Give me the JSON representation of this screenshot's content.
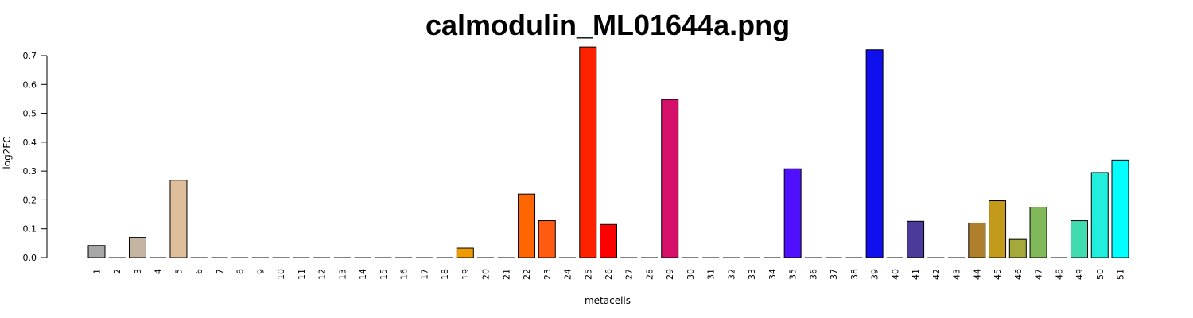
{
  "chart_data": {
    "type": "bar",
    "title": "calmodulin_ML01644a.png",
    "xlabel": "metacells",
    "ylabel": "log2FC",
    "ylim": [
      0,
      0.7
    ],
    "yticks": [
      "0.0",
      "0.1",
      "0.2",
      "0.3",
      "0.4",
      "0.5",
      "0.6",
      "0.7"
    ],
    "grid": false,
    "categories": [
      "1",
      "2",
      "3",
      "4",
      "5",
      "6",
      "7",
      "8",
      "9",
      "10",
      "11",
      "12",
      "13",
      "14",
      "15",
      "16",
      "17",
      "18",
      "19",
      "20",
      "21",
      "22",
      "23",
      "24",
      "25",
      "26",
      "27",
      "28",
      "29",
      "30",
      "31",
      "32",
      "33",
      "34",
      "35",
      "36",
      "37",
      "38",
      "39",
      "40",
      "41",
      "42",
      "43",
      "44",
      "45",
      "46",
      "47",
      "48",
      "49",
      "50",
      "51"
    ],
    "values": [
      0.042,
      0,
      0.07,
      0,
      0.268,
      0,
      0,
      0,
      0,
      0,
      0,
      0,
      0,
      0,
      0,
      0,
      0,
      0,
      0.033,
      0,
      0,
      0.22,
      0.128,
      0,
      0.73,
      0.115,
      0,
      0,
      0.548,
      0,
      0,
      0,
      0,
      0,
      0.308,
      0,
      0,
      0,
      0.72,
      0,
      0.126,
      0,
      0,
      0.12,
      0.197,
      0.063,
      0.175,
      0,
      0.128,
      0.295,
      0.338
    ],
    "colors": [
      "#a8a8a8",
      "#a8a8a8",
      "#c4b5a3",
      "#c4b5a3",
      "#dfbf9a",
      "#dfbf9a",
      "#dfbf9a",
      "#dfbf9a",
      "#dfbf9a",
      "#dfbf9a",
      "#dfbf9a",
      "#dfbf9a",
      "#dfbf9a",
      "#dfbf9a",
      "#dfbf9a",
      "#dfbf9a",
      "#dfbf9a",
      "#dfbf9a",
      "#f09a00",
      "#f09a00",
      "#f09a00",
      "#ff6600",
      "#ff5a10",
      "#ff3000",
      "#ff2200",
      "#ff0000",
      "#d4106a",
      "#d4106a",
      "#d4106a",
      "#5010ff",
      "#5010ff",
      "#5010ff",
      "#5010ff",
      "#5010ff",
      "#5010ff",
      "#1010ee",
      "#1010ee",
      "#1010ee",
      "#1010ee",
      "#4b3a9a",
      "#4b3a9a",
      "#b07f2c",
      "#b07f2c",
      "#b07f2c",
      "#c49a1b",
      "#a5a83a",
      "#80b85a",
      "#80b85a",
      "#40dcb0",
      "#22eedd",
      "#00ffff"
    ]
  }
}
